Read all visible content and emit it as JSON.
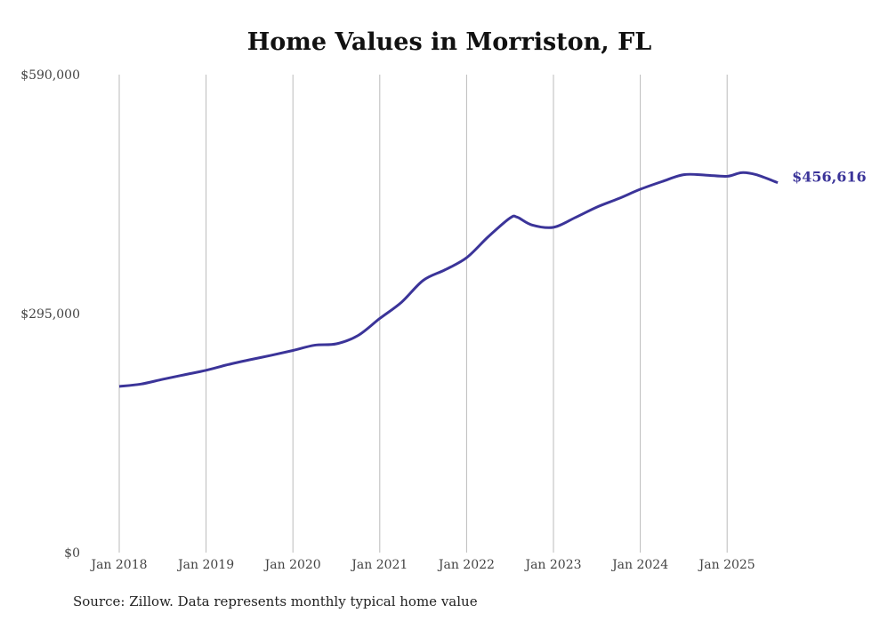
{
  "chart_data": {
    "type": "line",
    "title": "Home Values in Morriston, FL",
    "xlabel": "",
    "ylabel": "",
    "ylim": [
      0,
      590000
    ],
    "y_ticks": [
      {
        "value": 0,
        "label": "$0"
      },
      {
        "value": 295000,
        "label": "$295,000"
      },
      {
        "value": 590000,
        "label": "$590,000"
      }
    ],
    "x_ticks": [
      {
        "value": 2018,
        "label": "Jan 2018"
      },
      {
        "value": 2019,
        "label": "Jan 2019"
      },
      {
        "value": 2020,
        "label": "Jan 2020"
      },
      {
        "value": 2021,
        "label": "Jan 2021"
      },
      {
        "value": 2022,
        "label": "Jan 2022"
      },
      {
        "value": 2023,
        "label": "Jan 2023"
      },
      {
        "value": 2024,
        "label": "Jan 2024"
      },
      {
        "value": 2025,
        "label": "Jan 2025"
      }
    ],
    "grid": "vertical",
    "series": [
      {
        "name": "Typical home value",
        "color": "#3b3499",
        "x": [
          2018.0,
          2018.25,
          2018.5,
          2018.75,
          2019.0,
          2019.25,
          2019.5,
          2019.75,
          2020.0,
          2020.25,
          2020.5,
          2020.75,
          2021.0,
          2021.25,
          2021.5,
          2021.75,
          2022.0,
          2022.25,
          2022.5,
          2022.583,
          2022.75,
          2023.0,
          2023.25,
          2023.5,
          2023.75,
          2024.0,
          2024.25,
          2024.5,
          2024.75,
          2025.0,
          2025.167,
          2025.333,
          2025.583
        ],
        "values": [
          205100,
          208000,
          213900,
          219500,
          225000,
          232000,
          238000,
          243500,
          249500,
          256000,
          257700,
          268000,
          289000,
          309000,
          336000,
          349000,
          364000,
          390000,
          413000,
          414000,
          404500,
          401500,
          413500,
          426500,
          437000,
          448500,
          458000,
          466500,
          466000,
          464500,
          469000,
          466500,
          456616
        ]
      }
    ],
    "end_label": "$456,616"
  },
  "source": "Source: Zillow. Data represents monthly typical home value"
}
